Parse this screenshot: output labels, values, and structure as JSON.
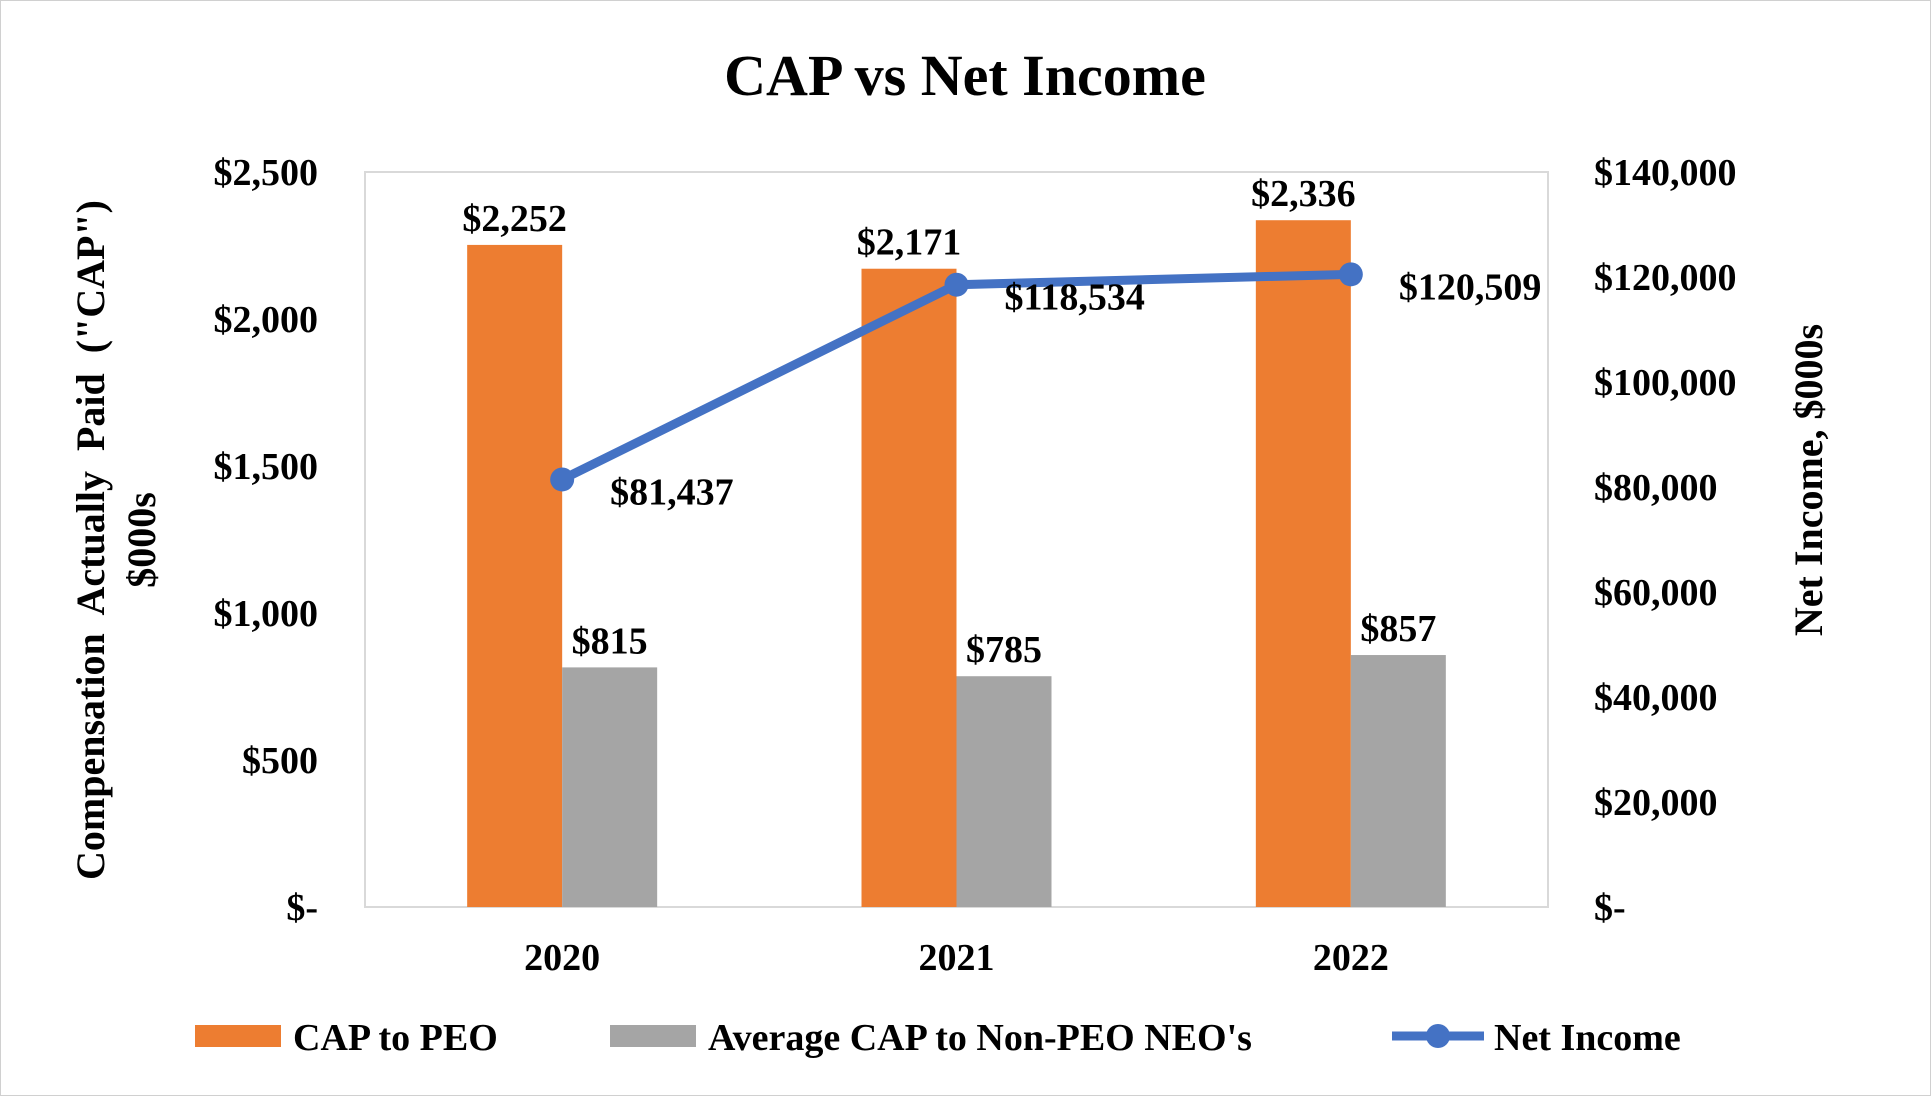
{
  "chart_data": {
    "type": "bar",
    "title": "CAP vs Net Income",
    "categories": [
      "2020",
      "2021",
      "2022"
    ],
    "y_left": {
      "label_line1": "Compensation  Actually  Paid  (\"CAP\")",
      "label_line2": "$000s",
      "ylim": [
        0,
        2500
      ],
      "ticks": [
        0,
        500,
        1000,
        1500,
        2000,
        2500
      ],
      "tick_labels": [
        "$-",
        "$500",
        "$1,000",
        "$1,500",
        "$2,000",
        "$2,500"
      ]
    },
    "y_right": {
      "label": "Net Income, $000s",
      "ylim": [
        0,
        140000
      ],
      "ticks": [
        0,
        20000,
        40000,
        60000,
        80000,
        100000,
        120000,
        140000
      ],
      "tick_labels": [
        "$-",
        "$20,000",
        "$40,000",
        "$60,000",
        "$80,000",
        "$100,000",
        "$120,000",
        "$140,000"
      ]
    },
    "series": [
      {
        "name": "CAP to PEO",
        "type": "bar",
        "axis": "left",
        "color": "#ED7D31",
        "values": [
          2252,
          2171,
          2336
        ],
        "labels": [
          "$2,252",
          "$2,171",
          "$2,336"
        ]
      },
      {
        "name": "Average CAP to Non-PEO NEO's",
        "type": "bar",
        "axis": "left",
        "color": "#A5A5A5",
        "values": [
          815,
          785,
          857
        ],
        "labels": [
          "$815",
          "$785",
          "$857"
        ]
      },
      {
        "name": "Net Income",
        "type": "line",
        "axis": "right",
        "color": "#4472C4",
        "values": [
          81437,
          118534,
          120509
        ],
        "labels": [
          "$81,437",
          "$118,534",
          "$120,509"
        ]
      }
    ],
    "grid": false,
    "legend_position": "bottom"
  }
}
